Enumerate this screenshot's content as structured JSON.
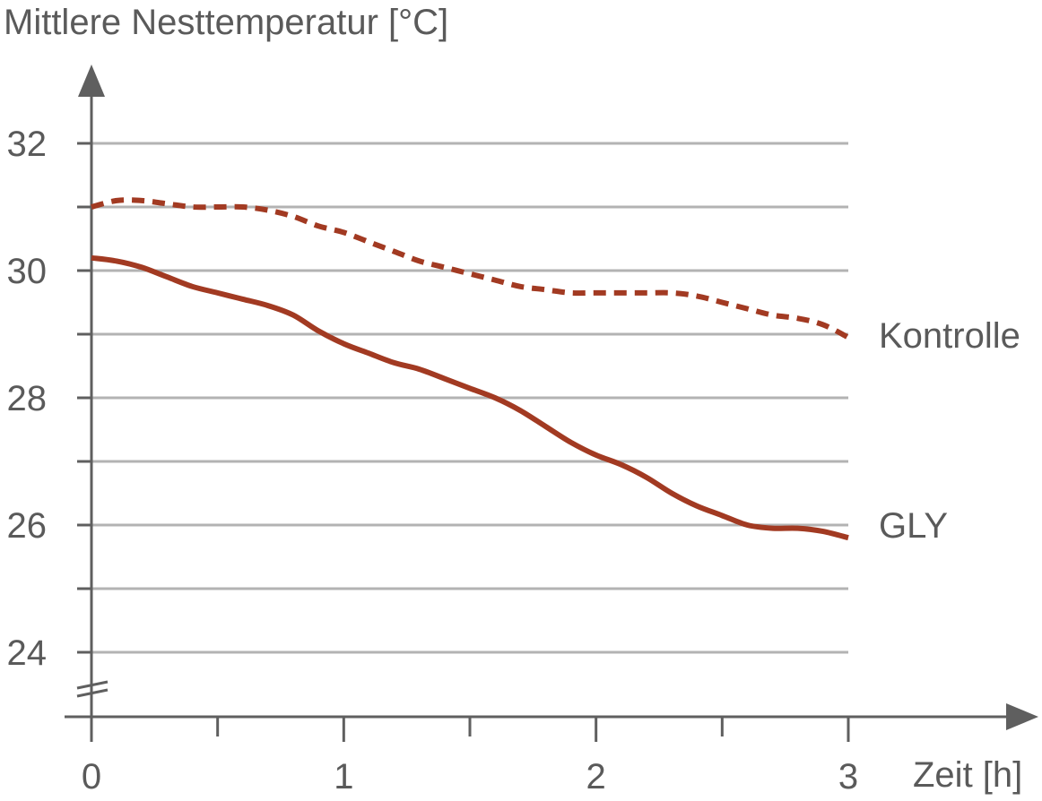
{
  "chart_data": {
    "type": "line",
    "ylabel": "Mittlere Nesttemperatur [°C]",
    "xlabel": "Zeit [h]",
    "xlim": [
      0,
      3
    ],
    "ylim": [
      23,
      33
    ],
    "x_ticks": [
      0,
      1,
      2,
      3
    ],
    "x_minor_ticks": [
      0.5,
      1.5,
      2.5
    ],
    "y_ticks": [
      24,
      26,
      28,
      30,
      32
    ],
    "y_minor_ticks": [
      25,
      27,
      29,
      31
    ],
    "grid": true,
    "axis_break": "y",
    "series": [
      {
        "name": "Kontrolle",
        "style": "dashed",
        "color": "#a23a22",
        "x": [
          0,
          0.1,
          0.2,
          0.3,
          0.4,
          0.5,
          0.6,
          0.7,
          0.8,
          0.9,
          1.0,
          1.1,
          1.2,
          1.3,
          1.4,
          1.5,
          1.6,
          1.7,
          1.8,
          1.9,
          2.0,
          2.1,
          2.2,
          2.3,
          2.4,
          2.5,
          2.6,
          2.7,
          2.8,
          2.9,
          3.0
        ],
        "y": [
          31.0,
          31.1,
          31.1,
          31.05,
          31.0,
          31.0,
          31.0,
          30.95,
          30.85,
          30.7,
          30.6,
          30.45,
          30.3,
          30.15,
          30.05,
          29.95,
          29.85,
          29.75,
          29.7,
          29.65,
          29.65,
          29.65,
          29.65,
          29.65,
          29.6,
          29.5,
          29.4,
          29.3,
          29.25,
          29.15,
          28.95
        ]
      },
      {
        "name": "GLY",
        "style": "solid",
        "color": "#a23a22",
        "x": [
          0,
          0.1,
          0.2,
          0.3,
          0.4,
          0.5,
          0.6,
          0.7,
          0.8,
          0.9,
          1.0,
          1.1,
          1.2,
          1.3,
          1.4,
          1.5,
          1.6,
          1.7,
          1.8,
          1.9,
          2.0,
          2.1,
          2.2,
          2.3,
          2.4,
          2.5,
          2.6,
          2.7,
          2.8,
          2.9,
          3.0
        ],
        "y": [
          30.2,
          30.15,
          30.05,
          29.9,
          29.75,
          29.65,
          29.55,
          29.45,
          29.3,
          29.05,
          28.85,
          28.7,
          28.55,
          28.45,
          28.3,
          28.15,
          28.0,
          27.8,
          27.55,
          27.3,
          27.1,
          26.95,
          26.75,
          26.5,
          26.3,
          26.15,
          26.0,
          25.95,
          25.95,
          25.9,
          25.8
        ]
      }
    ]
  }
}
